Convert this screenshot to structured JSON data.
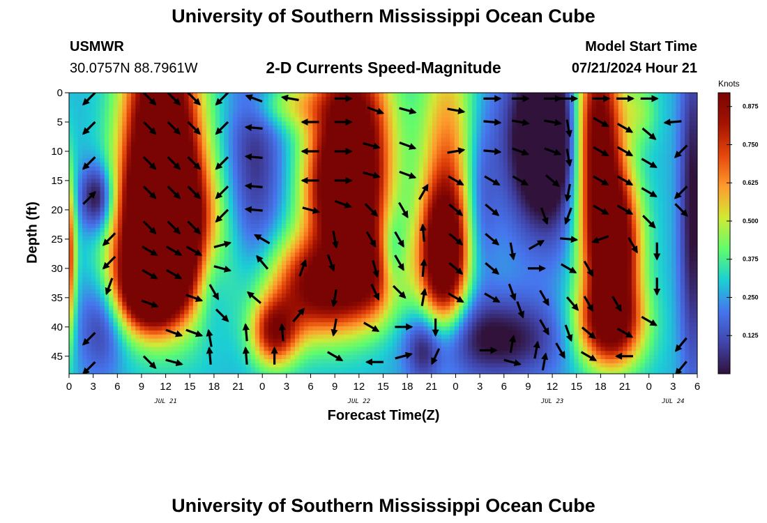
{
  "header": {
    "title": "University of Southern Mississippi Ocean Cube",
    "station": "USMWR",
    "coords": "30.0757N  88.7961W",
    "chart_title": "2-D Currents Speed-Magnitude",
    "model_label": "Model Start Time",
    "model_time": "07/21/2024 Hour 21"
  },
  "footer": {
    "title": "University of Southern Mississippi Ocean Cube"
  },
  "colors": {
    "colormap": [
      "#30123b",
      "#4145ab",
      "#4675ed",
      "#1bcfd4",
      "#61fc6c",
      "#d2e935",
      "#fe9b2d",
      "#e5460b",
      "#a51301",
      "#7a0403"
    ],
    "arrow": "#000000",
    "axis": "#000000"
  },
  "chart_data": {
    "type": "heatmap",
    "title": "2-D Currents Speed-Magnitude",
    "xlabel": "Forecast Time(Z)",
    "ylabel": "Depth (ft)",
    "x_ticks": [
      "0",
      "3",
      "6",
      "9",
      "12",
      "15",
      "18",
      "21",
      "0",
      "3",
      "6",
      "9",
      "12",
      "15",
      "18",
      "21",
      "0",
      "3",
      "6",
      "9",
      "12",
      "15",
      "18",
      "21",
      "0",
      "3",
      "6"
    ],
    "y_ticks": [
      0,
      5,
      10,
      15,
      20,
      25,
      30,
      35,
      40,
      45
    ],
    "xlim_hours": [
      0,
      78
    ],
    "ylim_ft": [
      0,
      48
    ],
    "date_labels": [
      {
        "label": "JUL 21",
        "hour": 12
      },
      {
        "label": "JUL 22",
        "hour": 36
      },
      {
        "label": "JUL 23",
        "hour": 60
      },
      {
        "label": "JUL 24",
        "hour": 75
      }
    ],
    "colorbar": {
      "label": "Knots",
      "min": 0.0,
      "max": 0.92,
      "ticks": [
        "0.875",
        "0.750",
        "0.625",
        "0.500",
        "0.375",
        "0.250",
        "0.125"
      ],
      "tick_values": [
        0.875,
        0.75,
        0.625,
        0.5,
        0.375,
        0.25,
        0.125
      ]
    },
    "speed_features": [
      {
        "hour": 0.0,
        "depth": 28,
        "sx": 0.6,
        "sy": 10,
        "v": 0.45
      },
      {
        "hour": 11.5,
        "depth": 5,
        "sx": 3.2,
        "sy": 12,
        "v": 0.88
      },
      {
        "hour": 11.5,
        "depth": 22,
        "sx": 3.3,
        "sy": 8,
        "v": 0.8
      },
      {
        "hour": 10.0,
        "depth": 33,
        "sx": 2.8,
        "sy": 5,
        "v": 0.8
      },
      {
        "hour": 12.5,
        "depth": 26,
        "sx": 4.5,
        "sy": 10,
        "v": 0.45
      },
      {
        "hour": 3.5,
        "depth": 18,
        "sx": 1.5,
        "sy": 4,
        "v": -0.35
      },
      {
        "hour": 4.0,
        "depth": 40,
        "sx": 2.0,
        "sy": 6,
        "v": -0.2
      },
      {
        "hour": 23.0,
        "depth": 12,
        "sx": 2.5,
        "sy": 14,
        "v": -0.22
      },
      {
        "hour": 17.5,
        "depth": 32,
        "sx": 1.5,
        "sy": 6,
        "v": -0.15
      },
      {
        "hour": 35.0,
        "depth": 8,
        "sx": 3.4,
        "sy": 11,
        "v": 0.82
      },
      {
        "hour": 34.0,
        "depth": 18,
        "sx": 3.0,
        "sy": 6,
        "v": 0.5
      },
      {
        "hour": 31.5,
        "depth": 33,
        "sx": 4.5,
        "sy": 6,
        "v": 0.7
      },
      {
        "hour": 25.5,
        "depth": 41,
        "sx": 2.0,
        "sy": 4,
        "v": 0.55
      },
      {
        "hour": 38.0,
        "depth": 30,
        "sx": 2.8,
        "sy": 6,
        "v": 0.4
      },
      {
        "hour": 40.0,
        "depth": 28,
        "sx": 1.2,
        "sy": 5,
        "v": -0.28
      },
      {
        "hour": 27.0,
        "depth": 2,
        "sx": 3.5,
        "sy": 3,
        "v": 0.2
      },
      {
        "hour": 46.5,
        "depth": 28,
        "sx": 2.0,
        "sy": 8,
        "v": 0.8
      },
      {
        "hour": 47.0,
        "depth": 10,
        "sx": 2.4,
        "sy": 14,
        "v": 0.35
      },
      {
        "hour": 51.0,
        "depth": 18,
        "sx": 1.5,
        "sy": 10,
        "v": -0.15
      },
      {
        "hour": 53.0,
        "depth": 42,
        "sx": 6.0,
        "sy": 5,
        "v": -0.3
      },
      {
        "hour": 44.0,
        "depth": 44,
        "sx": 1.5,
        "sy": 4,
        "v": -0.2
      },
      {
        "hour": 59.5,
        "depth": 8,
        "sx": 3.6,
        "sy": 11,
        "v": -0.55
      },
      {
        "hour": 65.5,
        "depth": 7,
        "sx": 2.2,
        "sy": 12,
        "v": 0.8
      },
      {
        "hour": 67.5,
        "depth": 27,
        "sx": 2.3,
        "sy": 9,
        "v": 0.85
      },
      {
        "hour": 67.0,
        "depth": 40,
        "sx": 3.0,
        "sy": 5,
        "v": 0.55
      },
      {
        "hour": 77.5,
        "depth": 20,
        "sx": 1.2,
        "sy": 20,
        "v": -0.3
      },
      {
        "hour": 71.0,
        "depth": 3,
        "sx": 1.5,
        "sy": 4,
        "v": 0.15
      }
    ],
    "vectors": [
      {
        "hour": 2.5,
        "depth": 1,
        "angle_deg": 225
      },
      {
        "hour": 2.5,
        "depth": 6,
        "angle_deg": 225
      },
      {
        "hour": 2.5,
        "depth": 12,
        "angle_deg": 225
      },
      {
        "hour": 2.5,
        "depth": 18,
        "angle_deg": 45
      },
      {
        "hour": 5,
        "depth": 25,
        "angle_deg": 225
      },
      {
        "hour": 5,
        "depth": 29,
        "angle_deg": 225
      },
      {
        "hour": 5,
        "depth": 33,
        "angle_deg": 250
      },
      {
        "hour": 2.5,
        "depth": 42,
        "angle_deg": 225
      },
      {
        "hour": 2.5,
        "depth": 47,
        "angle_deg": 225
      },
      {
        "hour": 10,
        "depth": 1,
        "angle_deg": 315
      },
      {
        "hour": 13,
        "depth": 1,
        "angle_deg": 315
      },
      {
        "hour": 15.5,
        "depth": 1,
        "angle_deg": 315
      },
      {
        "hour": 10,
        "depth": 6,
        "angle_deg": 315
      },
      {
        "hour": 13,
        "depth": 6,
        "angle_deg": 315
      },
      {
        "hour": 15.5,
        "depth": 6,
        "angle_deg": 315
      },
      {
        "hour": 10,
        "depth": 12,
        "angle_deg": 315
      },
      {
        "hour": 13,
        "depth": 12,
        "angle_deg": 315
      },
      {
        "hour": 15.5,
        "depth": 12,
        "angle_deg": 315
      },
      {
        "hour": 10,
        "depth": 17,
        "angle_deg": 315
      },
      {
        "hour": 13,
        "depth": 17,
        "angle_deg": 315
      },
      {
        "hour": 15.5,
        "depth": 17,
        "angle_deg": 315
      },
      {
        "hour": 10,
        "depth": 23,
        "angle_deg": 315
      },
      {
        "hour": 13,
        "depth": 23,
        "angle_deg": 315
      },
      {
        "hour": 15.5,
        "depth": 23,
        "angle_deg": 315
      },
      {
        "hour": 10,
        "depth": 27,
        "angle_deg": 330
      },
      {
        "hour": 13,
        "depth": 27,
        "angle_deg": 330
      },
      {
        "hour": 15.5,
        "depth": 27,
        "angle_deg": 330
      },
      {
        "hour": 10,
        "depth": 31,
        "angle_deg": 330
      },
      {
        "hour": 13,
        "depth": 31,
        "angle_deg": 330
      },
      {
        "hour": 10,
        "depth": 36,
        "angle_deg": 340
      },
      {
        "hour": 15.5,
        "depth": 35,
        "angle_deg": 340
      },
      {
        "hour": 13,
        "depth": 41,
        "angle_deg": 340
      },
      {
        "hour": 15.5,
        "depth": 41,
        "angle_deg": 340
      },
      {
        "hour": 10,
        "depth": 46,
        "angle_deg": 315
      },
      {
        "hour": 13,
        "depth": 46,
        "angle_deg": 345
      },
      {
        "hour": 19,
        "depth": 1,
        "angle_deg": 225
      },
      {
        "hour": 19,
        "depth": 6,
        "angle_deg": 225
      },
      {
        "hour": 19,
        "depth": 12,
        "angle_deg": 225
      },
      {
        "hour": 19,
        "depth": 17,
        "angle_deg": 225
      },
      {
        "hour": 19,
        "depth": 21,
        "angle_deg": 225
      },
      {
        "hour": 19,
        "depth": 26,
        "angle_deg": 15
      },
      {
        "hour": 19,
        "depth": 30,
        "angle_deg": 345
      },
      {
        "hour": 18,
        "depth": 34,
        "angle_deg": 300
      },
      {
        "hour": 19,
        "depth": 38,
        "angle_deg": 315
      },
      {
        "hour": 17.5,
        "depth": 42,
        "angle_deg": 100
      },
      {
        "hour": 17.5,
        "depth": 45,
        "angle_deg": 95
      },
      {
        "hour": 23,
        "depth": 1,
        "angle_deg": 160
      },
      {
        "hour": 23,
        "depth": 6,
        "angle_deg": 175
      },
      {
        "hour": 23,
        "depth": 11,
        "angle_deg": 175
      },
      {
        "hour": 23,
        "depth": 16,
        "angle_deg": 175
      },
      {
        "hour": 23,
        "depth": 20,
        "angle_deg": 175
      },
      {
        "hour": 24,
        "depth": 25,
        "angle_deg": 150
      },
      {
        "hour": 24,
        "depth": 29,
        "angle_deg": 130
      },
      {
        "hour": 23,
        "depth": 35,
        "angle_deg": 140
      },
      {
        "hour": 22,
        "depth": 41,
        "angle_deg": 95
      },
      {
        "hour": 22,
        "depth": 45,
        "angle_deg": 95
      },
      {
        "hour": 27.5,
        "depth": 1,
        "angle_deg": 170
      },
      {
        "hour": 30,
        "depth": 5,
        "angle_deg": 180
      },
      {
        "hour": 30,
        "depth": 10,
        "angle_deg": 180
      },
      {
        "hour": 30,
        "depth": 15,
        "angle_deg": 180
      },
      {
        "hour": 30,
        "depth": 20,
        "angle_deg": 345
      },
      {
        "hour": 29,
        "depth": 30,
        "angle_deg": 70
      },
      {
        "hour": 28.5,
        "depth": 38,
        "angle_deg": 50
      },
      {
        "hour": 26.5,
        "depth": 41,
        "angle_deg": 95
      },
      {
        "hour": 25.5,
        "depth": 45,
        "angle_deg": 90
      },
      {
        "hour": 34,
        "depth": 1,
        "angle_deg": 0
      },
      {
        "hour": 34,
        "depth": 5,
        "angle_deg": 0
      },
      {
        "hour": 34,
        "depth": 10,
        "angle_deg": 0
      },
      {
        "hour": 34,
        "depth": 15,
        "angle_deg": 0
      },
      {
        "hour": 34,
        "depth": 19,
        "angle_deg": 340
      },
      {
        "hour": 33,
        "depth": 25,
        "angle_deg": 280
      },
      {
        "hour": 32.5,
        "depth": 29,
        "angle_deg": 290
      },
      {
        "hour": 33,
        "depth": 35,
        "angle_deg": 260
      },
      {
        "hour": 33,
        "depth": 40,
        "angle_deg": 260
      },
      {
        "hour": 33,
        "depth": 45,
        "angle_deg": 330
      },
      {
        "hour": 38,
        "depth": 3,
        "angle_deg": 340
      },
      {
        "hour": 37.5,
        "depth": 9,
        "angle_deg": 345
      },
      {
        "hour": 37.5,
        "depth": 14,
        "angle_deg": 345
      },
      {
        "hour": 37.5,
        "depth": 20,
        "angle_deg": 315
      },
      {
        "hour": 37.5,
        "depth": 25,
        "angle_deg": 300
      },
      {
        "hour": 38,
        "depth": 30,
        "angle_deg": 285
      },
      {
        "hour": 38,
        "depth": 34,
        "angle_deg": 295
      },
      {
        "hour": 37.5,
        "depth": 40,
        "angle_deg": 330
      },
      {
        "hour": 38,
        "depth": 46,
        "angle_deg": 180
      },
      {
        "hour": 42,
        "depth": 3,
        "angle_deg": 345
      },
      {
        "hour": 42,
        "depth": 9,
        "angle_deg": 340
      },
      {
        "hour": 42,
        "depth": 14,
        "angle_deg": 340
      },
      {
        "hour": 41.5,
        "depth": 20,
        "angle_deg": 300
      },
      {
        "hour": 41,
        "depth": 25,
        "angle_deg": 300
      },
      {
        "hour": 41,
        "depth": 29,
        "angle_deg": 300
      },
      {
        "hour": 41,
        "depth": 34,
        "angle_deg": 315
      },
      {
        "hour": 41.5,
        "depth": 40,
        "angle_deg": 0
      },
      {
        "hour": 41.5,
        "depth": 45,
        "angle_deg": 15
      },
      {
        "hour": 44,
        "depth": 17,
        "angle_deg": 60
      },
      {
        "hour": 44,
        "depth": 24,
        "angle_deg": 95
      },
      {
        "hour": 44,
        "depth": 30,
        "angle_deg": 85
      },
      {
        "hour": 44,
        "depth": 35,
        "angle_deg": 80
      },
      {
        "hour": 45.5,
        "depth": 40,
        "angle_deg": 270
      },
      {
        "hour": 45.5,
        "depth": 45,
        "angle_deg": 245
      },
      {
        "hour": 48,
        "depth": 3,
        "angle_deg": 350
      },
      {
        "hour": 48,
        "depth": 10,
        "angle_deg": 10
      },
      {
        "hour": 48,
        "depth": 15,
        "angle_deg": 330
      },
      {
        "hour": 48,
        "depth": 20,
        "angle_deg": 320
      },
      {
        "hour": 48,
        "depth": 25,
        "angle_deg": 320
      },
      {
        "hour": 48,
        "depth": 30,
        "angle_deg": 320
      },
      {
        "hour": 48,
        "depth": 35,
        "angle_deg": 330
      },
      {
        "hour": 52.5,
        "depth": 1,
        "angle_deg": 0
      },
      {
        "hour": 52.5,
        "depth": 5,
        "angle_deg": 355
      },
      {
        "hour": 52.5,
        "depth": 10,
        "angle_deg": 355
      },
      {
        "hour": 52.5,
        "depth": 15,
        "angle_deg": 330
      },
      {
        "hour": 52.5,
        "depth": 20,
        "angle_deg": 320
      },
      {
        "hour": 52.5,
        "depth": 25,
        "angle_deg": 320
      },
      {
        "hour": 52.5,
        "depth": 30,
        "angle_deg": 320
      },
      {
        "hour": 52.5,
        "depth": 35,
        "angle_deg": 330
      },
      {
        "hour": 52,
        "depth": 44,
        "angle_deg": 0
      },
      {
        "hour": 56,
        "depth": 1,
        "angle_deg": 0
      },
      {
        "hour": 56,
        "depth": 5,
        "angle_deg": 350
      },
      {
        "hour": 56,
        "depth": 10,
        "angle_deg": 340
      },
      {
        "hour": 56,
        "depth": 15,
        "angle_deg": 330
      },
      {
        "hour": 55,
        "depth": 27,
        "angle_deg": 280
      },
      {
        "hour": 55,
        "depth": 34,
        "angle_deg": 290
      },
      {
        "hour": 56,
        "depth": 37,
        "angle_deg": 290
      },
      {
        "hour": 55,
        "depth": 43,
        "angle_deg": 80
      },
      {
        "hour": 55,
        "depth": 46,
        "angle_deg": 345
      },
      {
        "hour": 60,
        "depth": 1,
        "angle_deg": 0
      },
      {
        "hour": 60,
        "depth": 5,
        "angle_deg": 350
      },
      {
        "hour": 60,
        "depth": 10,
        "angle_deg": 340
      },
      {
        "hour": 60,
        "depth": 15,
        "angle_deg": 320
      },
      {
        "hour": 59,
        "depth": 21,
        "angle_deg": 290
      },
      {
        "hour": 58,
        "depth": 26,
        "angle_deg": 30
      },
      {
        "hour": 58,
        "depth": 30,
        "angle_deg": 0
      },
      {
        "hour": 59,
        "depth": 35,
        "angle_deg": 300
      },
      {
        "hour": 59,
        "depth": 40,
        "angle_deg": 300
      },
      {
        "hour": 58,
        "depth": 44,
        "angle_deg": 80
      },
      {
        "hour": 59,
        "depth": 46,
        "angle_deg": 80
      },
      {
        "hour": 62,
        "depth": 1,
        "angle_deg": 0
      },
      {
        "hour": 62,
        "depth": 6,
        "angle_deg": 280
      },
      {
        "hour": 62,
        "depth": 11,
        "angle_deg": 280
      },
      {
        "hour": 62,
        "depth": 17,
        "angle_deg": 260
      },
      {
        "hour": 62,
        "depth": 21,
        "angle_deg": 250
      },
      {
        "hour": 62,
        "depth": 25,
        "angle_deg": 355
      },
      {
        "hour": 62,
        "depth": 30,
        "angle_deg": 330
      },
      {
        "hour": 62.5,
        "depth": 36,
        "angle_deg": 310
      },
      {
        "hour": 62,
        "depth": 41,
        "angle_deg": 290
      },
      {
        "hour": 61,
        "depth": 44,
        "angle_deg": 300
      },
      {
        "hour": 66,
        "depth": 1,
        "angle_deg": 0
      },
      {
        "hour": 66,
        "depth": 5,
        "angle_deg": 330
      },
      {
        "hour": 66,
        "depth": 10,
        "angle_deg": 330
      },
      {
        "hour": 66,
        "depth": 15,
        "angle_deg": 330
      },
      {
        "hour": 66,
        "depth": 20,
        "angle_deg": 330
      },
      {
        "hour": 66,
        "depth": 25,
        "angle_deg": 200
      },
      {
        "hour": 64.5,
        "depth": 30,
        "angle_deg": 300
      },
      {
        "hour": 64.5,
        "depth": 36,
        "angle_deg": 300
      },
      {
        "hour": 64.5,
        "depth": 41,
        "angle_deg": 320
      },
      {
        "hour": 64.5,
        "depth": 45,
        "angle_deg": 330
      },
      {
        "hour": 69,
        "depth": 1,
        "angle_deg": 0
      },
      {
        "hour": 69,
        "depth": 6,
        "angle_deg": 330
      },
      {
        "hour": 69,
        "depth": 10,
        "angle_deg": 330
      },
      {
        "hour": 69,
        "depth": 15,
        "angle_deg": 330
      },
      {
        "hour": 69,
        "depth": 20,
        "angle_deg": 330
      },
      {
        "hour": 70,
        "depth": 26,
        "angle_deg": 300
      },
      {
        "hour": 68,
        "depth": 36,
        "angle_deg": 300
      },
      {
        "hour": 69,
        "depth": 41,
        "angle_deg": 330
      },
      {
        "hour": 69,
        "depth": 45,
        "angle_deg": 180
      },
      {
        "hour": 72,
        "depth": 1,
        "angle_deg": 0
      },
      {
        "hour": 72,
        "depth": 7,
        "angle_deg": 320
      },
      {
        "hour": 72,
        "depth": 12,
        "angle_deg": 330
      },
      {
        "hour": 72,
        "depth": 17,
        "angle_deg": 330
      },
      {
        "hour": 72,
        "depth": 22,
        "angle_deg": 315
      },
      {
        "hour": 73,
        "depth": 27,
        "angle_deg": 270
      },
      {
        "hour": 73,
        "depth": 33,
        "angle_deg": 270
      },
      {
        "hour": 72,
        "depth": 39,
        "angle_deg": 330
      },
      {
        "hour": 75,
        "depth": 5,
        "angle_deg": 185
      },
      {
        "hour": 76,
        "depth": 10,
        "angle_deg": 225
      },
      {
        "hour": 76,
        "depth": 17,
        "angle_deg": 225
      },
      {
        "hour": 76,
        "depth": 20,
        "angle_deg": 315
      },
      {
        "hour": 76,
        "depth": 43,
        "angle_deg": 230
      },
      {
        "hour": 76,
        "depth": 47,
        "angle_deg": 230
      }
    ]
  }
}
